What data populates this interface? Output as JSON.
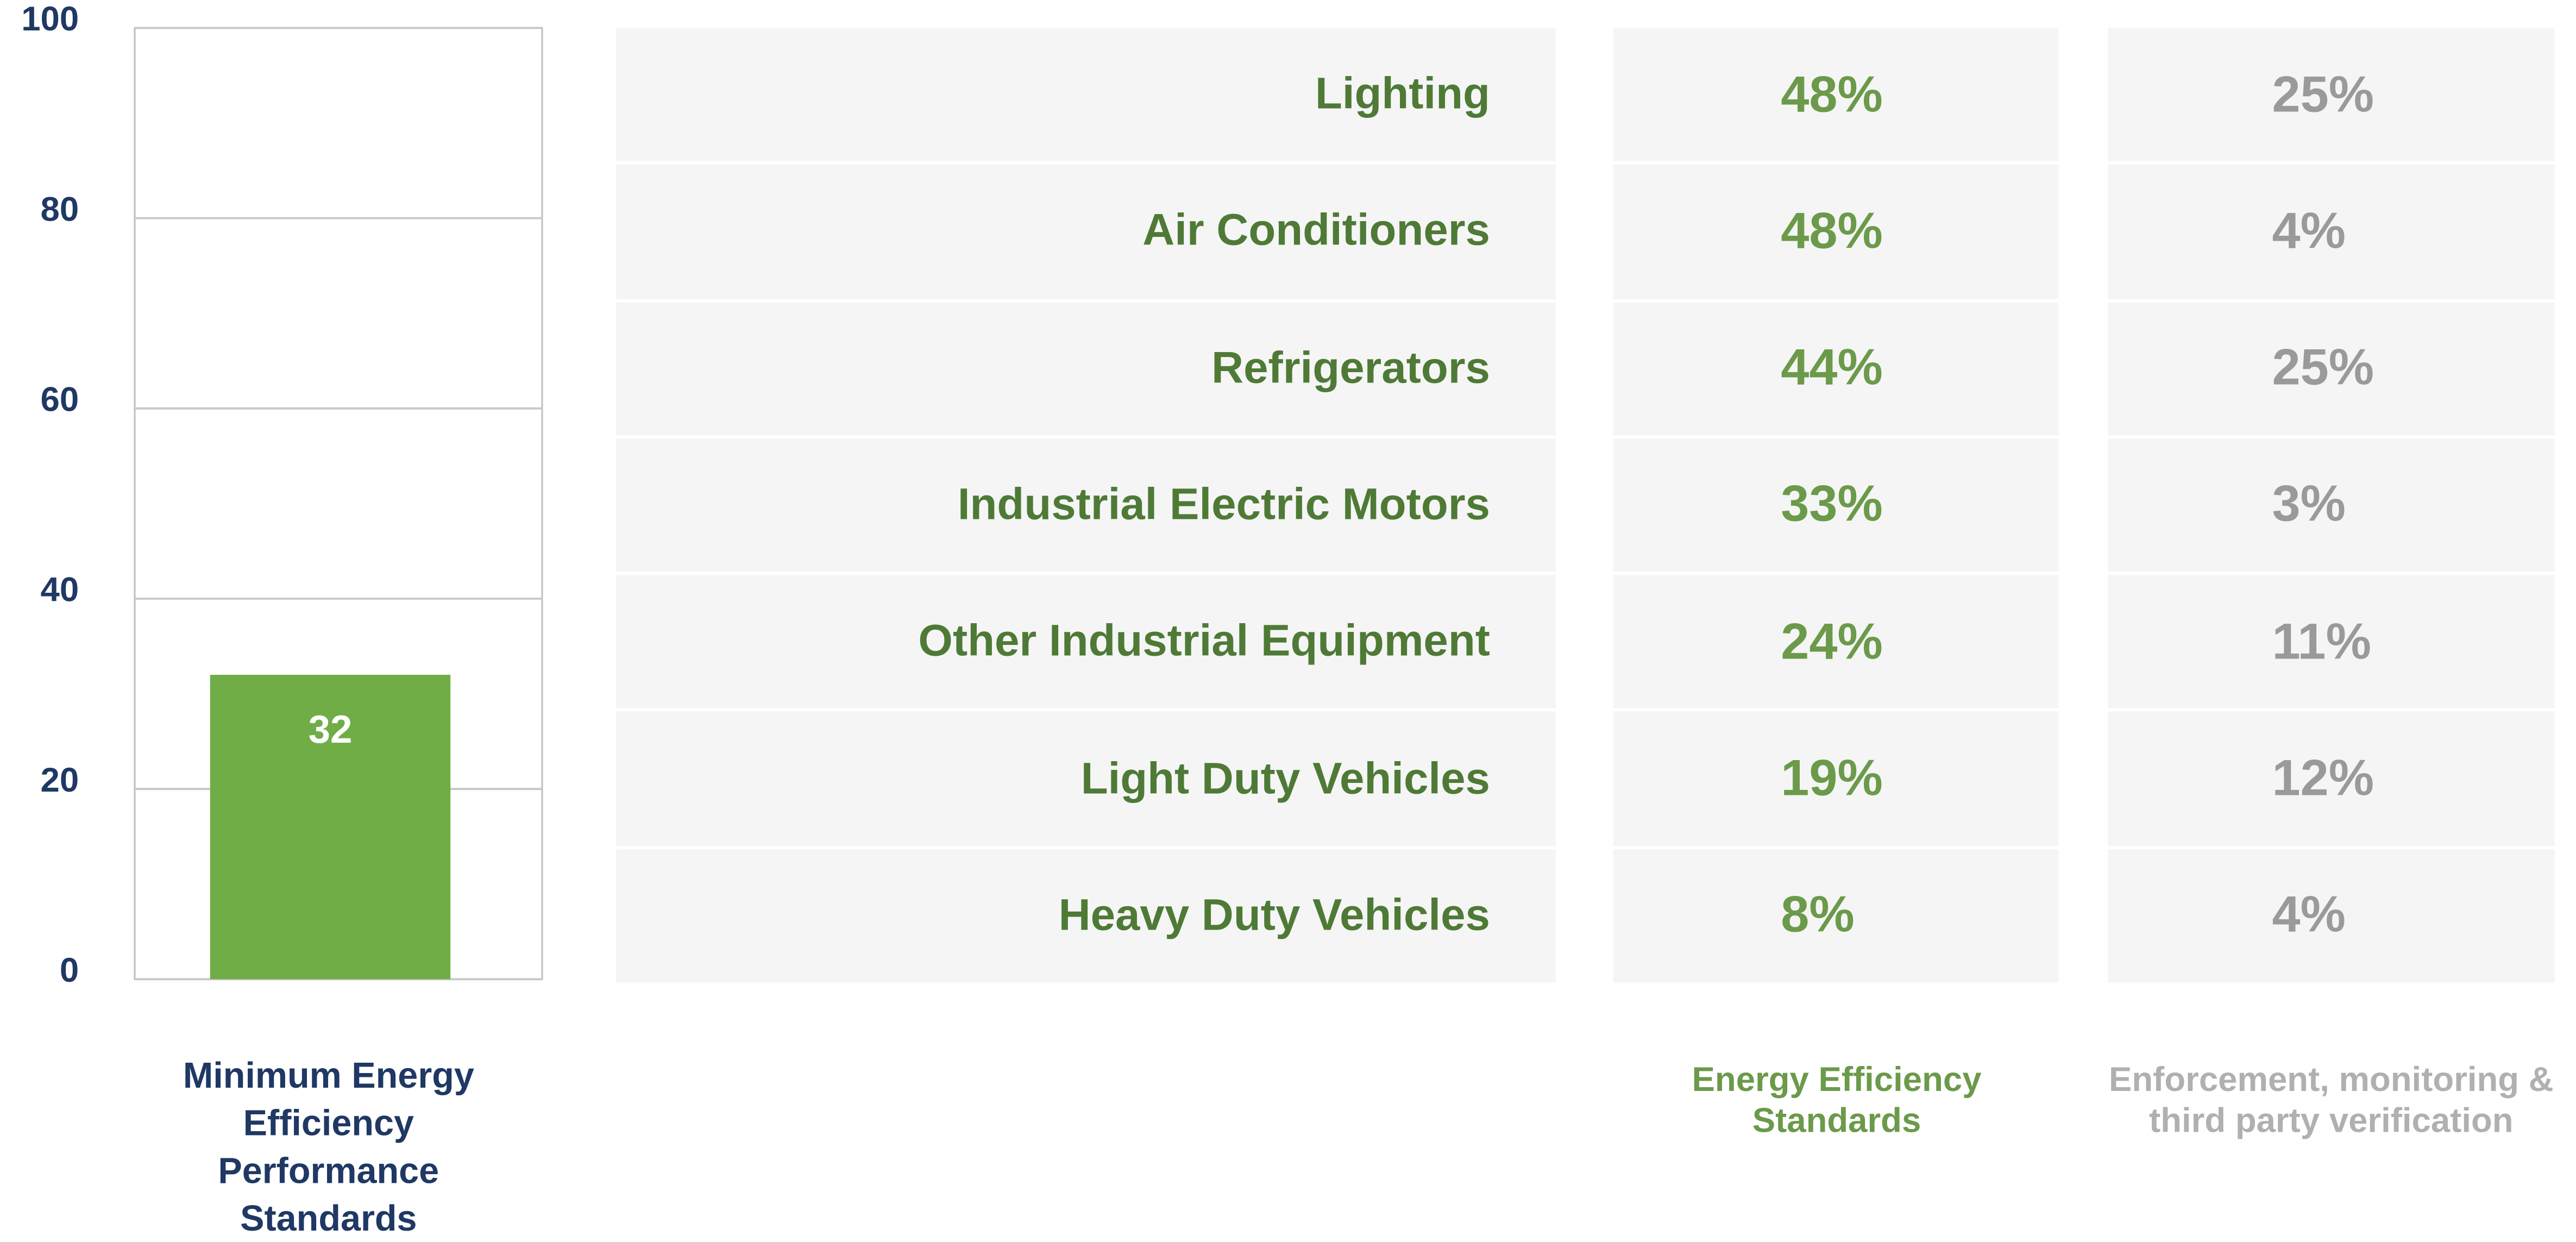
{
  "chart_data": {
    "type": "bar",
    "categories": [
      "Minimum Energy Efficiency Performance Standards"
    ],
    "values": [
      32
    ],
    "color": "#70ad47",
    "ylim": [
      0,
      100
    ],
    "yticks": [
      0,
      20,
      40,
      60,
      80,
      100
    ],
    "grid": true
  },
  "table": {
    "headers": [
      "Energy Efficiency Standards",
      "Enforcement, monitoring & third party verification"
    ],
    "rows": [
      [
        "Lighting",
        "48%",
        "25%"
      ],
      [
        "Air Conditioners",
        "48%",
        "4%"
      ],
      [
        "Refrigerators",
        "44%",
        "25%"
      ],
      [
        "Industrial Electric Motors",
        "33%",
        "3%"
      ],
      [
        "Other Industrial Equipment",
        "24%",
        "11%"
      ],
      [
        "Light Duty Vehicles",
        "19%",
        "12%"
      ],
      [
        "Heavy Duty Vehicles",
        "8%",
        "4%"
      ]
    ]
  }
}
